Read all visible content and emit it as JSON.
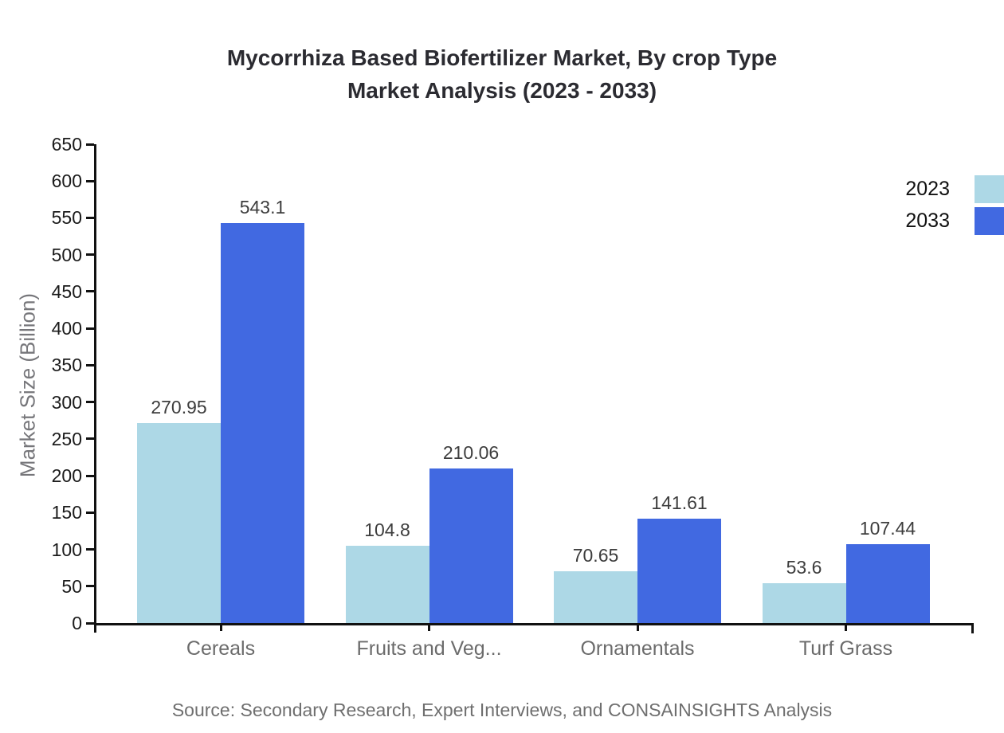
{
  "title": {
    "line1": "Mycorrhiza Based Biofertilizer Market, By crop Type",
    "line2": "Market Analysis (2023 - 2033)"
  },
  "source": "Source: Secondary Research, Expert Interviews, and CONSAINSIGHTS Analysis",
  "chart_data": {
    "type": "bar",
    "title": "Mycorrhiza Based Biofertilizer Market, By crop Type Market Analysis (2023 - 2033)",
    "categories": [
      "Cereals",
      "Fruits and Veg...",
      "Ornamentals",
      "Turf Grass"
    ],
    "series": [
      {
        "name": "2023",
        "color": "#ADD8E6",
        "values": [
          270.95,
          104.8,
          70.65,
          53.6
        ]
      },
      {
        "name": "2033",
        "color": "#4169E1",
        "values": [
          543.1,
          210.06,
          141.61,
          107.44
        ]
      }
    ],
    "xlabel": "",
    "ylabel": "Market Size (Billion)",
    "ylim": [
      0,
      650
    ],
    "ytick_step": 50,
    "grid": false,
    "legend_position": "top-right",
    "value_labels": true
  }
}
